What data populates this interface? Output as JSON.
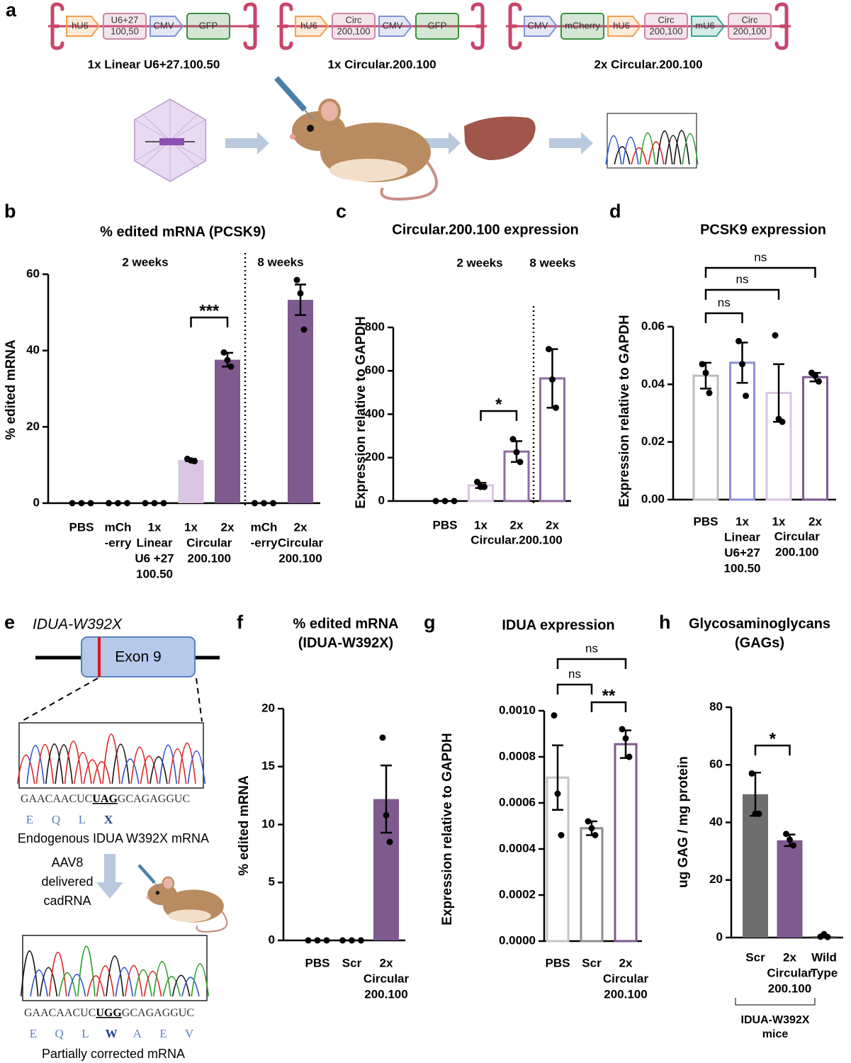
{
  "panel_labels": [
    "a",
    "b",
    "c",
    "d",
    "e",
    "f",
    "g",
    "h"
  ],
  "panel_a": {
    "constructs": [
      {
        "name": "1x Linear U6+27.100.50",
        "elements": [
          {
            "label": [
              "hU6"
            ],
            "shape": "arrow",
            "color": "#f0a050"
          },
          {
            "label": [
              "U6+27",
              "100,50"
            ],
            "shape": "box",
            "color": "#cc86a6"
          },
          {
            "label": [
              "CMV"
            ],
            "shape": "arrow",
            "color": "#7f93d6"
          },
          {
            "label": [
              "GFP"
            ],
            "shape": "box",
            "color": "#3e8e3e"
          }
        ]
      },
      {
        "name": "1x Circular.200.100",
        "elements": [
          {
            "label": [
              "hU6"
            ],
            "shape": "arrow",
            "color": "#f0a050"
          },
          {
            "label": [
              "Circ",
              "200,100"
            ],
            "shape": "box",
            "color": "#cc86a6"
          },
          {
            "label": [
              "CMV"
            ],
            "shape": "arrow",
            "color": "#7f93d6"
          },
          {
            "label": [
              "GFP"
            ],
            "shape": "box",
            "color": "#3e8e3e"
          }
        ]
      },
      {
        "name": "2x Circular.200.100",
        "elements": [
          {
            "label": [
              "CMV"
            ],
            "shape": "arrow",
            "color": "#7f93d6"
          },
          {
            "label": [
              "mCherry"
            ],
            "shape": "box",
            "color": "#3e8e3e"
          },
          {
            "label": [
              "hU6"
            ],
            "shape": "arrow",
            "color": "#f0a050"
          },
          {
            "label": [
              "Circ",
              "200,100"
            ],
            "shape": "box",
            "color": "#cc86a6"
          },
          {
            "label": [
              "mU6"
            ],
            "shape": "arrow",
            "color": "#3aa394"
          },
          {
            "label": [
              "Circ",
              "200,100"
            ],
            "shape": "box",
            "color": "#cc86a6"
          }
        ]
      }
    ]
  },
  "panel_e": {
    "gene": "IDUA-W392X",
    "exon": "Exon 9",
    "before": {
      "sequence": [
        "GAACAACUC",
        "UAG",
        "GCAGAGGUC"
      ],
      "residues": [
        "E",
        "Q",
        "L",
        "X"
      ],
      "caption": "Endogenous IDUA W392X mRNA"
    },
    "delivery": [
      "AAV8",
      "delivered",
      "cadRNA"
    ],
    "after": {
      "sequence": [
        "GAACAACUC",
        "UGG",
        "GCAGAGGUC"
      ],
      "residues": [
        "E",
        "Q",
        "L",
        "W",
        "A",
        "E",
        "V"
      ],
      "caption": "Partially corrected mRNA"
    }
  },
  "chart_data": [
    {
      "type": "bar",
      "title": "% edited mRNA (PCSK9)",
      "ylabel": "% edited mRNA",
      "bar_style": "filled",
      "categories": [
        [
          "PBS"
        ],
        [
          "mCh",
          "-erry"
        ],
        [
          "1x",
          "Linear",
          "U6 +27",
          "100.50"
        ],
        [
          "1x"
        ],
        [
          "2x"
        ],
        [
          "mCh",
          "-erry"
        ],
        [
          "2x",
          "Circular",
          "200.100"
        ]
      ],
      "shared_label": [
        "Circular",
        "200.100"
      ],
      "groups": [
        "2 weeks",
        "8 weeks"
      ],
      "values": [
        0,
        0,
        0,
        11.3,
        37.6,
        0,
        53.3
      ],
      "errors": [
        0,
        0,
        0,
        0.3,
        1.8,
        0,
        4.0
      ],
      "points": [
        [
          0,
          0,
          0
        ],
        [
          0,
          0,
          0
        ],
        [
          0,
          0,
          0
        ],
        [
          11.6,
          11.2,
          11.0
        ],
        [
          39.5,
          37.5,
          35.8
        ],
        [
          0,
          0,
          0
        ],
        [
          58.5,
          55,
          45.5
        ]
      ],
      "colors": [
        "#7e5a8f",
        "#7e5a8f",
        "#7e5a8f",
        "#d9c4e1",
        "#7e5a8f",
        "#7e5a8f",
        "#7e5a8f"
      ],
      "comparisons": [
        {
          "label": "***",
          "pair": [
            3,
            4
          ]
        }
      ],
      "ylim": [
        0,
        60
      ],
      "yticks": [
        0,
        20,
        40,
        60
      ]
    },
    {
      "type": "bar",
      "title": "Circular.200.100 expression",
      "ylabel": "Expression relative to GAPDH",
      "bar_style": "open",
      "categories": [
        [
          "PBS"
        ],
        [
          "1x"
        ],
        [
          "2x"
        ],
        [
          "2x"
        ]
      ],
      "shared_label": [
        "Circular.200.100"
      ],
      "groups": [
        "2 weeks",
        "8 weeks"
      ],
      "values": [
        0,
        72,
        228,
        565
      ],
      "errors": [
        0,
        12,
        48,
        135
      ],
      "points": [
        [
          0,
          0,
          0
        ],
        [
          88,
          65,
          65
        ],
        [
          285,
          225,
          180
        ],
        [
          700,
          560,
          430
        ]
      ],
      "colors": [
        "#c8b3d4",
        "#d9c4e1",
        "#8f6ca2",
        "#8f6ca2"
      ],
      "comparisons": [
        {
          "label": "*",
          "pair": [
            1,
            2
          ]
        }
      ],
      "ylim": [
        0,
        800
      ],
      "yticks": [
        0,
        200,
        400,
        600,
        800
      ]
    },
    {
      "type": "bar",
      "title": "PCSK9 expression",
      "ylabel": "Expression relative to GAPDH",
      "bar_style": "open",
      "categories": [
        [
          "PBS"
        ],
        [
          "1x",
          "Linear",
          "U6+27",
          "100.50"
        ],
        [
          "1x"
        ],
        [
          "2x"
        ]
      ],
      "shared_label": [
        "Circular",
        "200.100"
      ],
      "values": [
        0.043,
        0.0475,
        0.037,
        0.0425
      ],
      "errors": [
        0.0045,
        0.007,
        0.01,
        0.0015
      ],
      "points": [
        [
          0.047,
          0.044,
          0.037
        ],
        [
          0.055,
          0.047,
          0.036
        ],
        [
          0.057,
          0.028,
          0.027
        ],
        [
          0.044,
          0.043,
          0.041
        ]
      ],
      "colors": [
        "#bdbdbd",
        "#8f90dc",
        "#d9c4e1",
        "#7e5a8f"
      ],
      "comparisons": [
        {
          "label": "ns",
          "pair": [
            0,
            1
          ]
        },
        {
          "label": "ns",
          "pair": [
            0,
            2
          ]
        },
        {
          "label": "ns",
          "pair": [
            0,
            3
          ]
        }
      ],
      "ylim": [
        0,
        0.06
      ],
      "yticks": [
        {
          "value": 0,
          "label": "0.00"
        },
        {
          "value": 0.02,
          "label": "0.02"
        },
        {
          "value": 0.04,
          "label": "0.04"
        },
        {
          "value": 0.06,
          "label": "0.06"
        }
      ]
    },
    {
      "type": "bar",
      "title": [
        "% edited mRNA",
        "(IDUA-W392X)"
      ],
      "ylabel": "% edited mRNA",
      "bar_style": "filled",
      "categories": [
        [
          "PBS"
        ],
        [
          "Scr"
        ],
        [
          "2x",
          "Circular",
          "200.100"
        ]
      ],
      "values": [
        0,
        0,
        12.2
      ],
      "errors": [
        0,
        0,
        2.9
      ],
      "points": [
        [
          0,
          0,
          0
        ],
        [
          0,
          0,
          0
        ],
        [
          17.5,
          10.8,
          8.5
        ]
      ],
      "colors": [
        "#7e5a8f",
        "#7e5a8f",
        "#7e5a8f"
      ],
      "ylim": [
        0,
        20
      ],
      "yticks": [
        0,
        5,
        10,
        15,
        20
      ]
    },
    {
      "type": "bar",
      "title": "IDUA expression",
      "ylabel": "Expression relative to GAPDH",
      "bar_style": "open",
      "categories": [
        [
          "PBS"
        ],
        [
          "Scr"
        ],
        [
          "2x",
          "Circular",
          "200.100"
        ]
      ],
      "values": [
        0.00071,
        0.00049,
        0.000855
      ],
      "errors": [
        0.00014,
        3e-05,
        6e-05
      ],
      "points": [
        [
          0.00098,
          0.00064,
          0.00046
        ],
        [
          0.00052,
          0.00049,
          0.00046
        ],
        [
          0.00092,
          0.00088,
          0.0008
        ]
      ],
      "colors": [
        "#c6c6c6",
        "#8c8c8c",
        "#7e5a8f"
      ],
      "comparisons": [
        {
          "label": "ns",
          "pair": [
            0,
            1
          ]
        },
        {
          "label": "**",
          "pair": [
            1,
            2
          ]
        },
        {
          "label": "ns",
          "pair": [
            0,
            2
          ]
        }
      ],
      "ylim": [
        0,
        0.001
      ],
      "yticks": [
        {
          "value": 0,
          "label": "0.0000"
        },
        {
          "value": 0.0002,
          "label": "0.0002"
        },
        {
          "value": 0.0004,
          "label": "0.0004"
        },
        {
          "value": 0.0006,
          "label": "0.0006"
        },
        {
          "value": 0.0008,
          "label": "0.0008"
        },
        {
          "value": 0.001,
          "label": "0.0010"
        }
      ]
    },
    {
      "type": "bar",
      "title": [
        "Glycosaminoglycans",
        "(GAGs)"
      ],
      "ylabel": "ug GAG / mg protein",
      "bar_style": "filled",
      "categories": [
        [
          "Scr"
        ],
        [
          "2x",
          "Circular",
          "200.100"
        ],
        [
          "Wild",
          "Type"
        ]
      ],
      "bracket_group": [
        "IDUA-W392X",
        "mice"
      ],
      "values": [
        49.8,
        33.8,
        0.5
      ],
      "errors": [
        7.5,
        2,
        0.3
      ],
      "points": [
        [
          57,
          43,
          43
        ],
        [
          36,
          34,
          32
        ],
        [
          0.3,
          1.2,
          0.2
        ]
      ],
      "colors": [
        "#6e6e6e",
        "#7e5a8f",
        "#6e6e6e"
      ],
      "comparisons": [
        {
          "label": "*",
          "pair": [
            0,
            1
          ]
        }
      ],
      "ylim": [
        0,
        80
      ],
      "yticks": [
        0,
        20,
        40,
        60,
        80
      ]
    }
  ]
}
